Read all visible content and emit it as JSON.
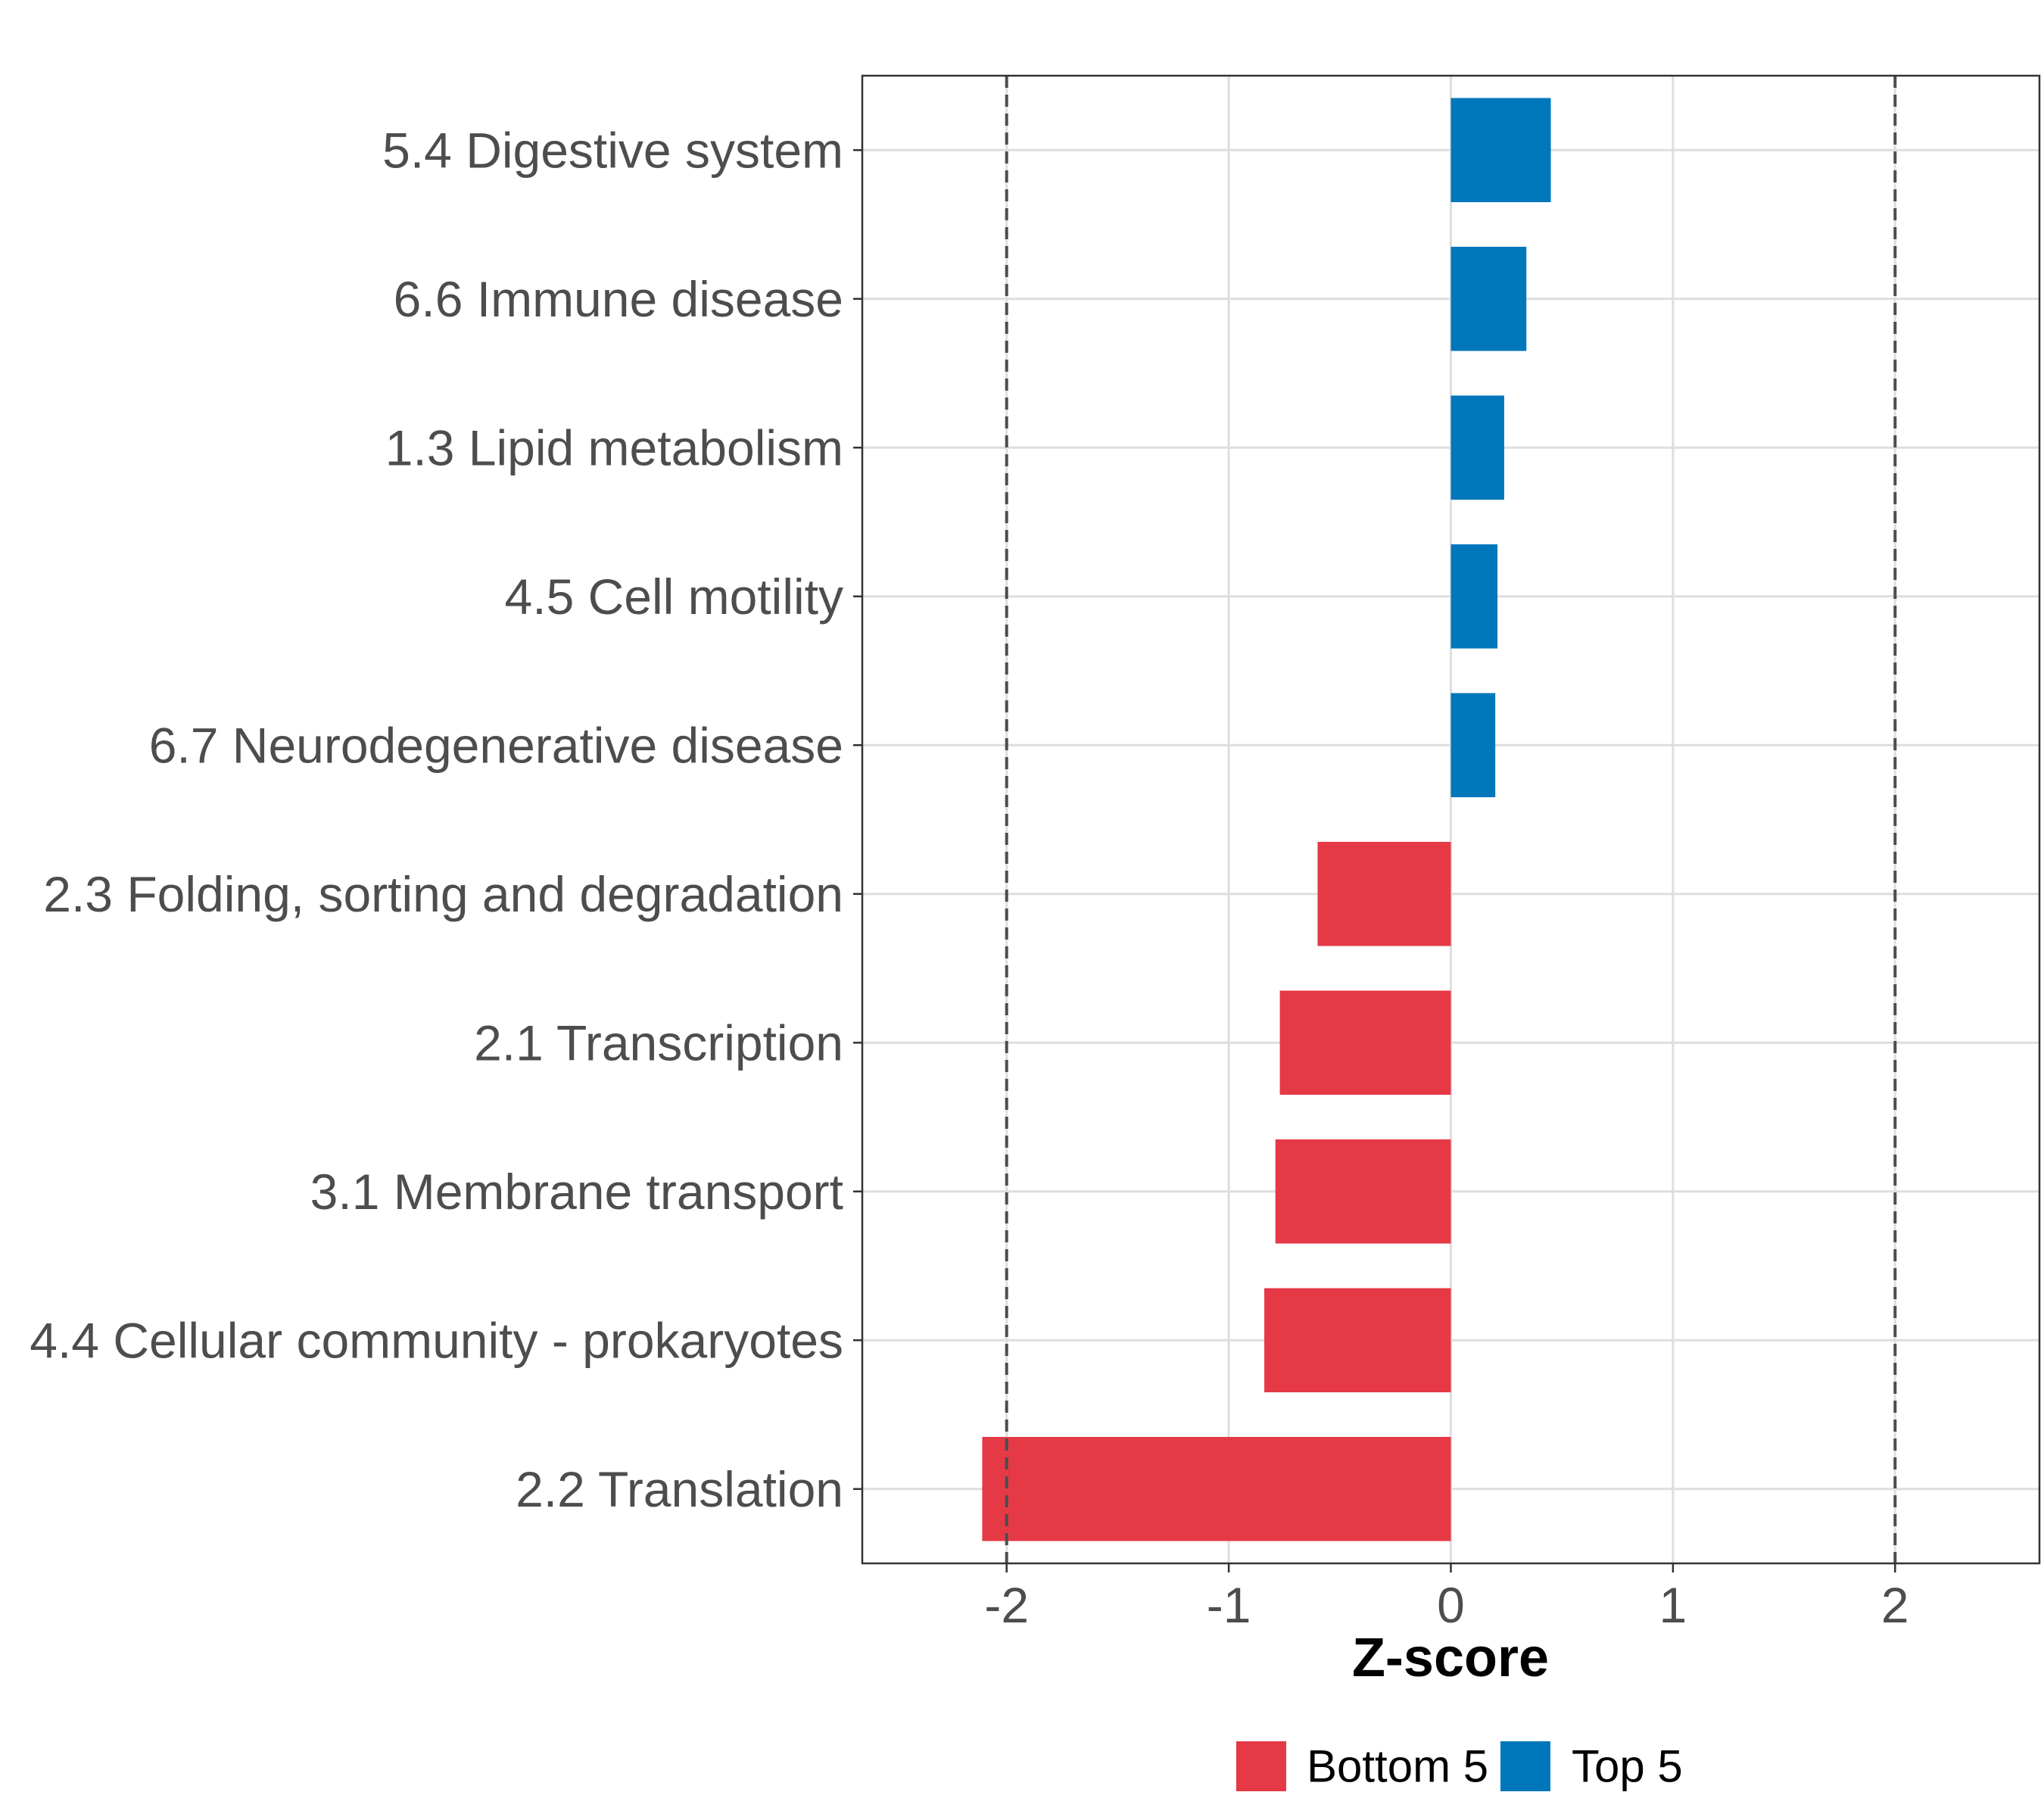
{
  "chart_data": {
    "type": "bar",
    "orientation": "horizontal",
    "title": "",
    "xlabel": "Z-score",
    "ylabel": "",
    "xlim": [
      -2.65,
      2.65
    ],
    "xticks": [
      -2,
      -1,
      0,
      1,
      2
    ],
    "xtick_labels": [
      "-2",
      "-1",
      "0",
      "1",
      "2"
    ],
    "reference_lines": [
      -2,
      2
    ],
    "grid": true,
    "categories": [
      "5.4 Digestive system",
      "6.6 Immune disease",
      "1.3 Lipid metabolism",
      "4.5 Cell motility",
      "6.7 Neurodegenerative disease",
      "2.3 Folding, sorting and degradation",
      "2.1 Transcription",
      "3.1 Membrane transport",
      "4.4 Cellular community - prokaryotes",
      "2.2 Translation"
    ],
    "values": [
      0.45,
      0.34,
      0.24,
      0.21,
      0.2,
      -0.6,
      -0.77,
      -0.79,
      -0.84,
      -2.11
    ],
    "groups": [
      "Top 5",
      "Top 5",
      "Top 5",
      "Top 5",
      "Top 5",
      "Bottom 5",
      "Bottom 5",
      "Bottom 5",
      "Bottom 5",
      "Bottom 5"
    ],
    "legend": [
      {
        "name": "Bottom 5",
        "color": "#e63946"
      },
      {
        "name": "Top 5",
        "color": "#0077bb"
      }
    ],
    "legend_position": "bottom"
  }
}
